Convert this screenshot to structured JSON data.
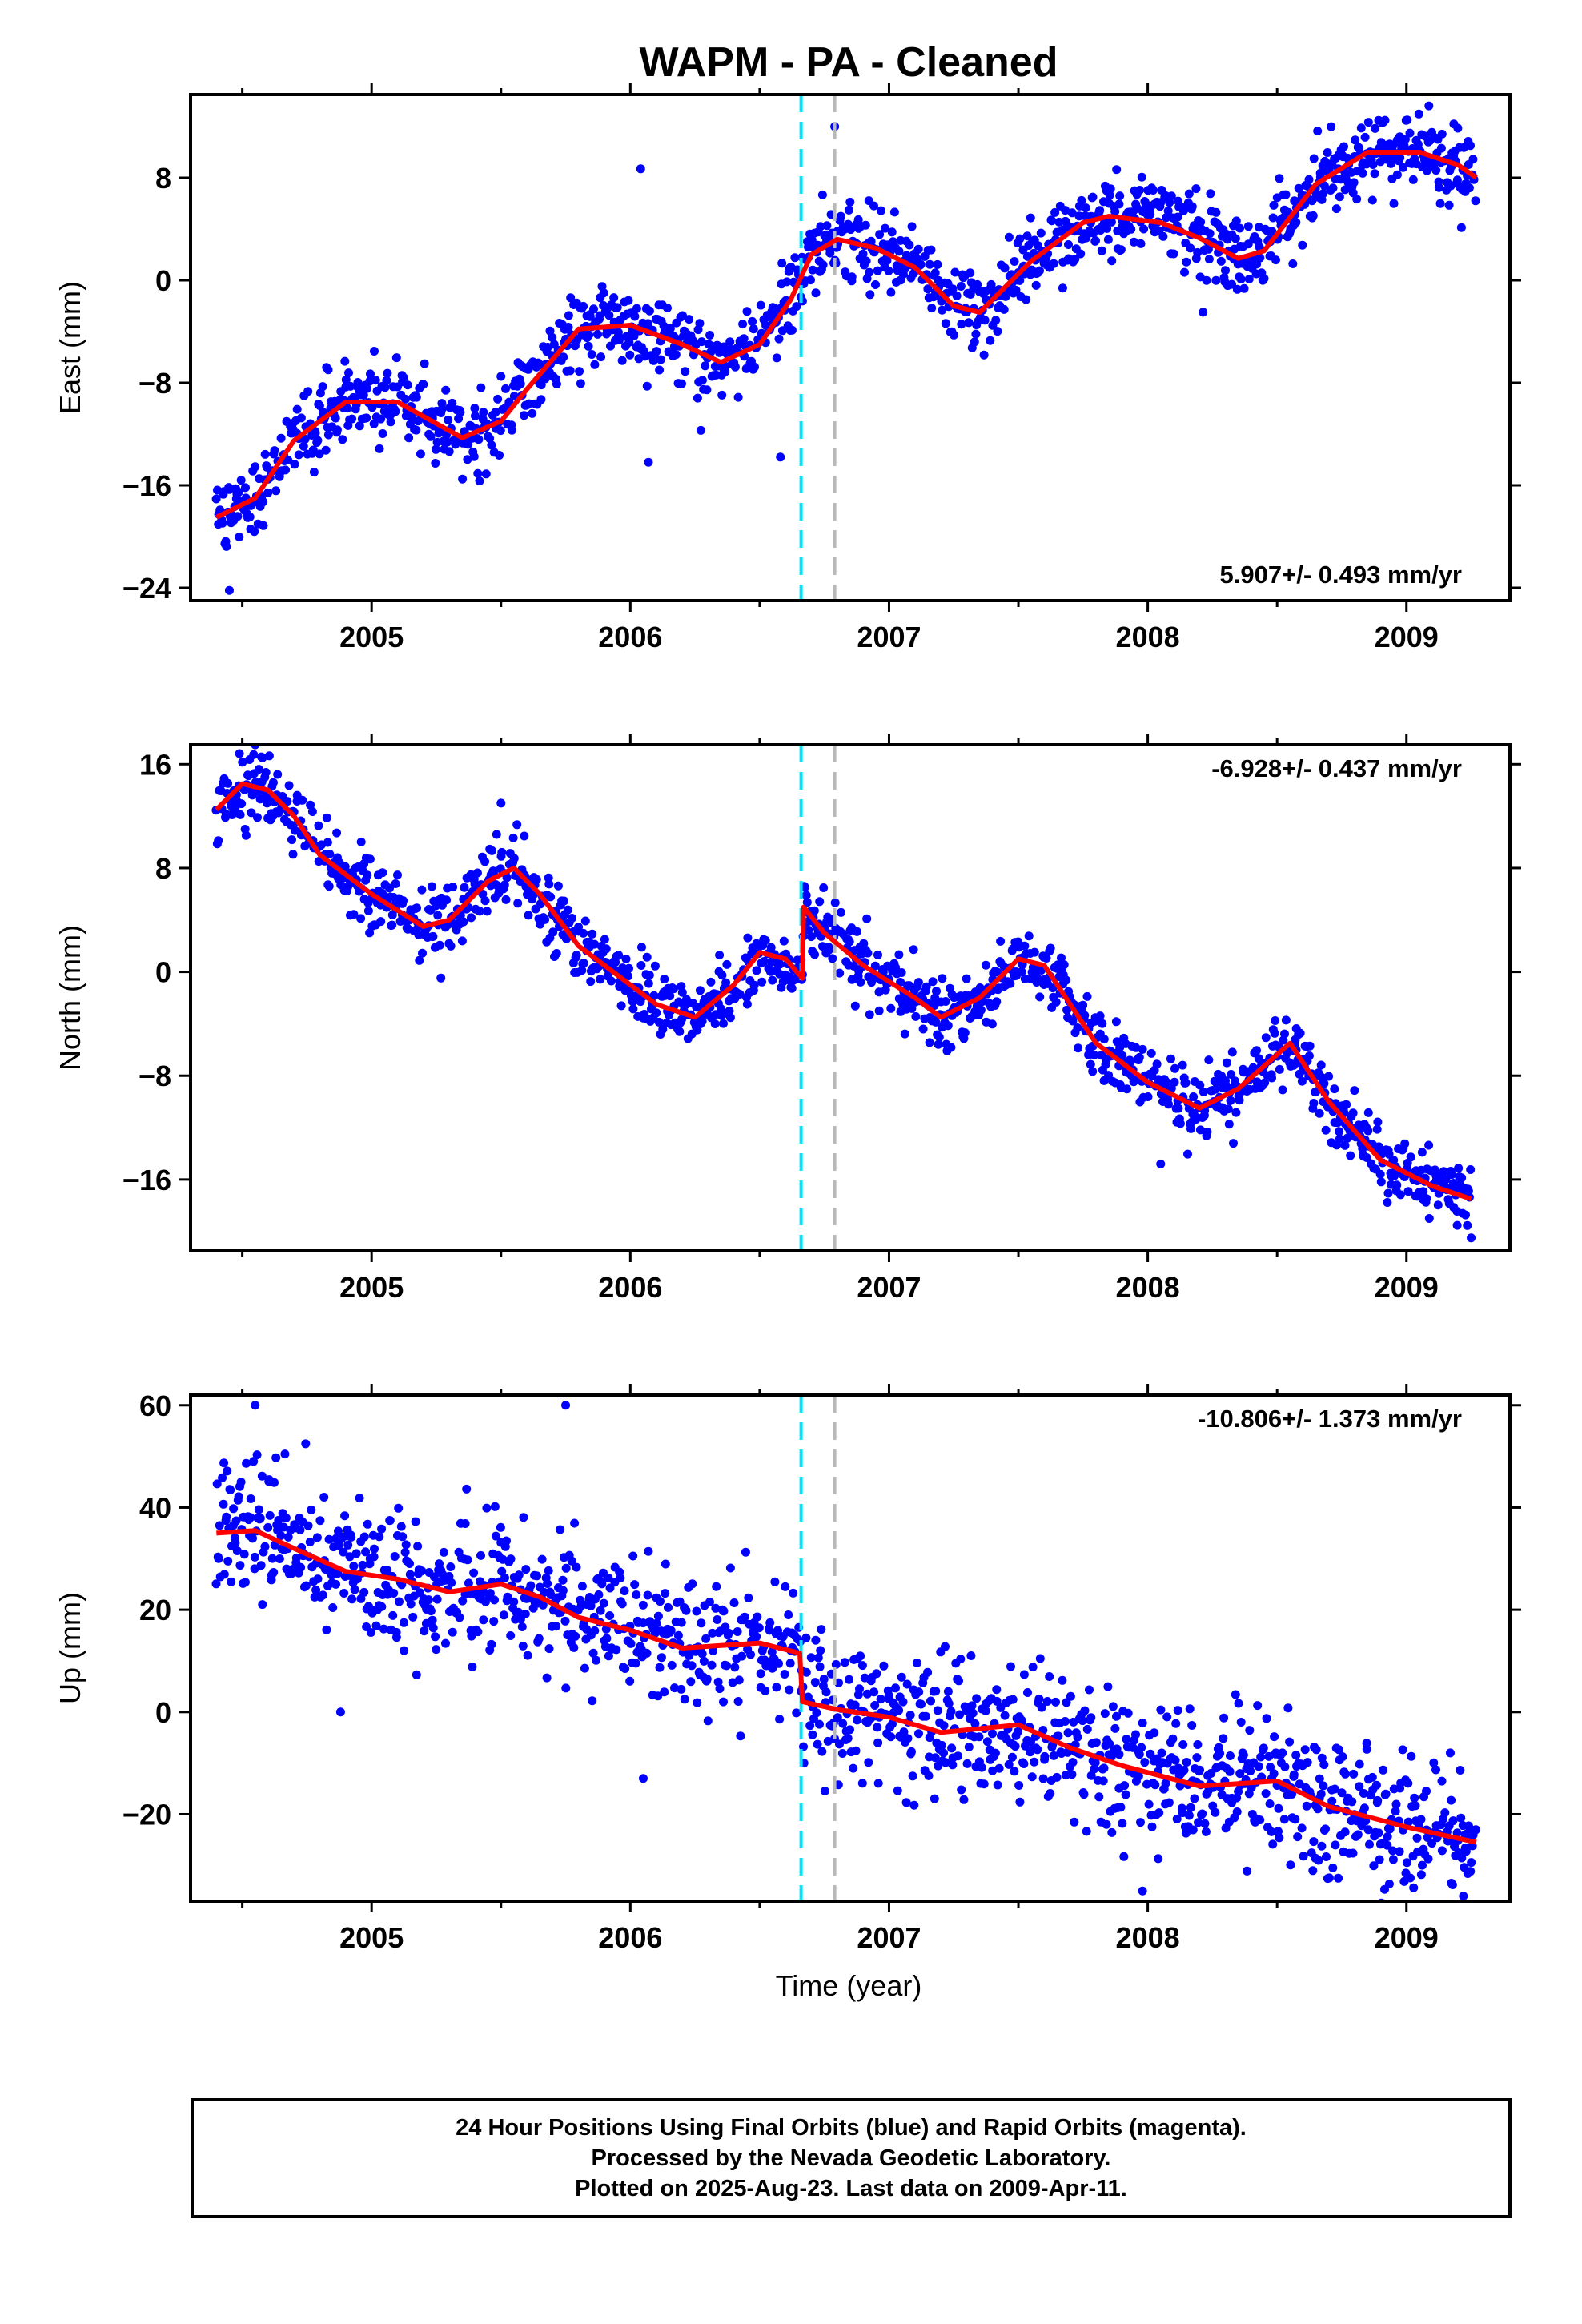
{
  "title": "WAPM  - PA - Cleaned",
  "xlabel": "Time (year)",
  "footer": {
    "line1": "24 Hour Positions Using Final Orbits (blue) and Rapid Orbits (magenta).",
    "line2": "Processed by the Nevada Geodetic Laboratory.",
    "line3": "Plotted on 2025-Aug-23. Last data on 2009-Apr-11."
  },
  "colors": {
    "points": "#0000ff",
    "fit": "#ff0000",
    "equipment_line": "#00e5ff",
    "other_line": "#b8b8b8"
  },
  "chart_data": [
    {
      "type": "scatter",
      "name_panel": "east",
      "ylabel": "East (mm)",
      "xlim": [
        2004.3,
        2009.4
      ],
      "ylim": [
        -25,
        14.5
      ],
      "xticks": [
        2005,
        2006,
        2007,
        2008,
        2009
      ],
      "yticks": [
        -24,
        -16,
        -8,
        0,
        8
      ],
      "rate_label": "5.907+/- 0.493 mm/yr",
      "rate_position": "bottom-right",
      "vertical_lines": [
        {
          "x": 2006.66,
          "style": "cyan-dashed"
        },
        {
          "x": 2006.79,
          "style": "gray-dashed"
        }
      ],
      "trend": [
        [
          2004.4,
          -18.5
        ],
        [
          2004.55,
          -17.0
        ],
        [
          2004.7,
          -12.5
        ],
        [
          2004.9,
          -9.5
        ],
        [
          2005.1,
          -9.5
        ],
        [
          2005.35,
          -12.3
        ],
        [
          2005.5,
          -11.0
        ],
        [
          2005.6,
          -8.5
        ],
        [
          2005.8,
          -3.8
        ],
        [
          2006.0,
          -3.5
        ],
        [
          2006.2,
          -5.0
        ],
        [
          2006.35,
          -6.4
        ],
        [
          2006.5,
          -5.0
        ],
        [
          2006.62,
          -1.5
        ],
        [
          2006.7,
          2.0
        ],
        [
          2006.8,
          3.2
        ],
        [
          2006.95,
          2.5
        ],
        [
          2007.1,
          1.0
        ],
        [
          2007.25,
          -2.0
        ],
        [
          2007.35,
          -2.5
        ],
        [
          2007.55,
          1.5
        ],
        [
          2007.75,
          4.5
        ],
        [
          2007.85,
          5.0
        ],
        [
          2008.05,
          4.5
        ],
        [
          2008.2,
          3.3
        ],
        [
          2008.35,
          1.7
        ],
        [
          2008.45,
          2.3
        ],
        [
          2008.65,
          7.5
        ],
        [
          2008.85,
          10.0
        ],
        [
          2009.05,
          10.0
        ],
        [
          2009.2,
          9.0
        ],
        [
          2009.27,
          8.0
        ]
      ],
      "noise": 1.5,
      "outliers": [
        [
          2006.04,
          8.7
        ],
        [
          2006.07,
          -14.2
        ],
        [
          2006.58,
          -13.8
        ],
        [
          2006.79,
          12.0
        ],
        [
          2004.45,
          -24.2
        ]
      ]
    },
    {
      "type": "scatter",
      "name_panel": "north",
      "ylabel": "North (mm)",
      "xlim": [
        2004.3,
        2009.4
      ],
      "ylim": [
        -21.5,
        17.5
      ],
      "xticks": [
        2005,
        2006,
        2007,
        2008,
        2009
      ],
      "yticks": [
        -16,
        -8,
        0,
        8,
        16
      ],
      "rate_label": "-6.928+/- 0.437 mm/yr",
      "rate_position": "top-right",
      "vertical_lines": [
        {
          "x": 2006.66,
          "style": "cyan-dashed"
        },
        {
          "x": 2006.79,
          "style": "gray-dashed"
        }
      ],
      "trend": [
        [
          2004.4,
          12.5
        ],
        [
          2004.5,
          14.5
        ],
        [
          2004.6,
          14.0
        ],
        [
          2004.7,
          12.0
        ],
        [
          2004.8,
          9.0
        ],
        [
          2005.0,
          6.0
        ],
        [
          2005.2,
          3.5
        ],
        [
          2005.3,
          4.0
        ],
        [
          2005.45,
          7.0
        ],
        [
          2005.55,
          8.0
        ],
        [
          2005.65,
          6.0
        ],
        [
          2005.8,
          2.0
        ],
        [
          2006.0,
          -1.0
        ],
        [
          2006.1,
          -2.5
        ],
        [
          2006.25,
          -3.5
        ],
        [
          2006.4,
          -1.0
        ],
        [
          2006.5,
          1.5
        ],
        [
          2006.6,
          1.0
        ],
        [
          2006.665,
          -0.5
        ],
        [
          2006.67,
          5.0
        ],
        [
          2006.75,
          3.0
        ],
        [
          2006.9,
          0.5
        ],
        [
          2007.1,
          -2.0
        ],
        [
          2007.2,
          -3.5
        ],
        [
          2007.35,
          -2.0
        ],
        [
          2007.5,
          1.0
        ],
        [
          2007.6,
          0.5
        ],
        [
          2007.8,
          -5.5
        ],
        [
          2008.0,
          -8.5
        ],
        [
          2008.2,
          -10.5
        ],
        [
          2008.35,
          -9.0
        ],
        [
          2008.55,
          -5.5
        ],
        [
          2008.7,
          -10.0
        ],
        [
          2008.9,
          -14.5
        ],
        [
          2009.1,
          -16.5
        ],
        [
          2009.25,
          -17.5
        ]
      ],
      "noise": 1.3,
      "outliers": [
        [
          2005.5,
          13.0
        ],
        [
          2004.55,
          17.5
        ],
        [
          2008.05,
          -14.8
        ],
        [
          2009.25,
          -20.5
        ]
      ]
    },
    {
      "type": "scatter",
      "name_panel": "up",
      "ylabel": "Up (mm)",
      "xlim": [
        2004.3,
        2009.4
      ],
      "ylim": [
        -37,
        62
      ],
      "xticks": [
        2005,
        2006,
        2007,
        2008,
        2009
      ],
      "yticks": [
        -20,
        0,
        20,
        40,
        60
      ],
      "rate_label": "-10.806+/- 1.373 mm/yr",
      "rate_position": "top-right",
      "vertical_lines": [
        {
          "x": 2006.66,
          "style": "cyan-dashed"
        },
        {
          "x": 2006.79,
          "style": "gray-dashed"
        }
      ],
      "trend": [
        [
          2004.4,
          35.0
        ],
        [
          2004.55,
          35.5
        ],
        [
          2004.7,
          32.0
        ],
        [
          2004.9,
          27.5
        ],
        [
          2005.1,
          26.0
        ],
        [
          2005.3,
          23.5
        ],
        [
          2005.5,
          25.0
        ],
        [
          2005.65,
          22.5
        ],
        [
          2005.8,
          18.5
        ],
        [
          2006.0,
          16.0
        ],
        [
          2006.2,
          12.5
        ],
        [
          2006.35,
          13.0
        ],
        [
          2006.5,
          13.5
        ],
        [
          2006.655,
          11.5
        ],
        [
          2006.665,
          2.0
        ],
        [
          2006.8,
          0.5
        ],
        [
          2007.0,
          -1.0
        ],
        [
          2007.2,
          -4.0
        ],
        [
          2007.5,
          -2.5
        ],
        [
          2007.7,
          -7.0
        ],
        [
          2007.9,
          -10.5
        ],
        [
          2008.2,
          -14.5
        ],
        [
          2008.5,
          -13.5
        ],
        [
          2008.7,
          -18.5
        ],
        [
          2009.0,
          -22.5
        ],
        [
          2009.27,
          -25.5
        ]
      ],
      "noise": 6.5,
      "outliers": [
        [
          2004.55,
          60.0
        ],
        [
          2005.75,
          60.0
        ],
        [
          2004.88,
          0.0
        ],
        [
          2006.05,
          -13.0
        ],
        [
          2007.98,
          -35.0
        ],
        [
          2009.22,
          -36.0
        ]
      ]
    }
  ]
}
